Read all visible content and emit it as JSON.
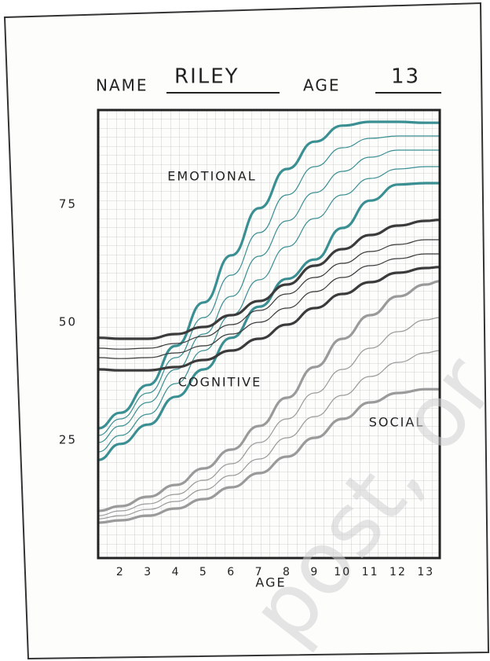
{
  "chart_data": {
    "type": "line",
    "header": {
      "name_label": "NAME",
      "name": "RILEY",
      "age_label": "AGE",
      "age": "13"
    },
    "xlabel": "AGE",
    "annotations": [
      "EMOTIONAL",
      "COGNITIVE",
      "SOCIAL"
    ],
    "watermark": "post, or",
    "x": [
      1.2,
      2,
      3,
      4,
      5,
      6,
      7,
      8,
      9,
      10,
      11,
      12,
      13,
      13.5
    ],
    "xlim": [
      1.2,
      13.5
    ],
    "xticks": [
      2,
      3,
      4,
      5,
      6,
      7,
      8,
      9,
      10,
      11,
      12,
      13
    ],
    "ylim": [
      0,
      95
    ],
    "yticks": [
      25,
      50,
      75
    ],
    "series": [
      {
        "color": "#3a8f93",
        "values": [
          27.5,
          30.8,
          36.7,
          45,
          54.2,
          64.2,
          74.2,
          82.5,
          88.3,
          91.7,
          92.5,
          92.5,
          92.3,
          92.3
        ]
      },
      {
        "color": "#3a8f93",
        "values": [
          20.8,
          24.2,
          28.3,
          34.2,
          40,
          46.7,
          53.3,
          59.2,
          63.3,
          70,
          75.8,
          79.2,
          79.5,
          79.5
        ]
      },
      {
        "color": "#3a8f93",
        "values": [
          26,
          29.5,
          35,
          42.5,
          51,
          60,
          69,
          77,
          83,
          87,
          89,
          89.5,
          89.5,
          89.5
        ]
      },
      {
        "color": "#3a8f93",
        "values": [
          24.5,
          28,
          33,
          40,
          47.5,
          55.5,
          64,
          71.5,
          77.5,
          82,
          85,
          86.5,
          86.5,
          86.5
        ]
      },
      {
        "color": "#3a8f93",
        "values": [
          22.5,
          26,
          30.5,
          37,
          44,
          51.5,
          59,
          66,
          72,
          77,
          80.5,
          82.5,
          83,
          83
        ]
      },
      {
        "color": "#3b3b3b",
        "values": [
          46.7,
          46.5,
          46.5,
          47.5,
          49,
          51.5,
          54.5,
          58,
          62,
          65.5,
          68.5,
          70.5,
          71.5,
          71.7
        ]
      },
      {
        "color": "#3b3b3b",
        "values": [
          40,
          39.8,
          39.8,
          40.5,
          42,
          44,
          46.5,
          49.5,
          53,
          56,
          58.5,
          60.5,
          61.5,
          61.7
        ]
      },
      {
        "color": "#3b3b3b",
        "values": [
          44.5,
          44.3,
          44.5,
          45.5,
          47,
          49.5,
          52.5,
          56,
          59.5,
          62.5,
          65,
          66.5,
          67.5,
          67.5
        ]
      },
      {
        "color": "#3b3b3b",
        "values": [
          42.5,
          42.3,
          42.5,
          43.5,
          45,
          47.5,
          50,
          53,
          56.5,
          59.5,
          62,
          63.5,
          64.5,
          64.5
        ]
      },
      {
        "color": "#9a9a9a",
        "values": [
          10,
          11,
          13,
          15.5,
          19,
          23,
          28,
          34,
          40.5,
          46.5,
          51.5,
          55.5,
          58,
          58.7
        ]
      },
      {
        "color": "#9a9a9a",
        "values": [
          7.5,
          8,
          9,
          10.5,
          12.5,
          15,
          18,
          21.5,
          25.5,
          29.5,
          33,
          35,
          35.8,
          35.8
        ]
      },
      {
        "color": "#9a9a9a",
        "values": [
          9,
          10,
          11.5,
          13.5,
          16.5,
          20,
          24.5,
          29.5,
          35,
          40,
          44.5,
          48,
          50.5,
          51
        ]
      },
      {
        "color": "#9a9a9a",
        "values": [
          8.3,
          9,
          10.3,
          12,
          14.5,
          17.5,
          21,
          25.5,
          30,
          34.5,
          38.5,
          41.5,
          43.5,
          44
        ]
      }
    ]
  }
}
